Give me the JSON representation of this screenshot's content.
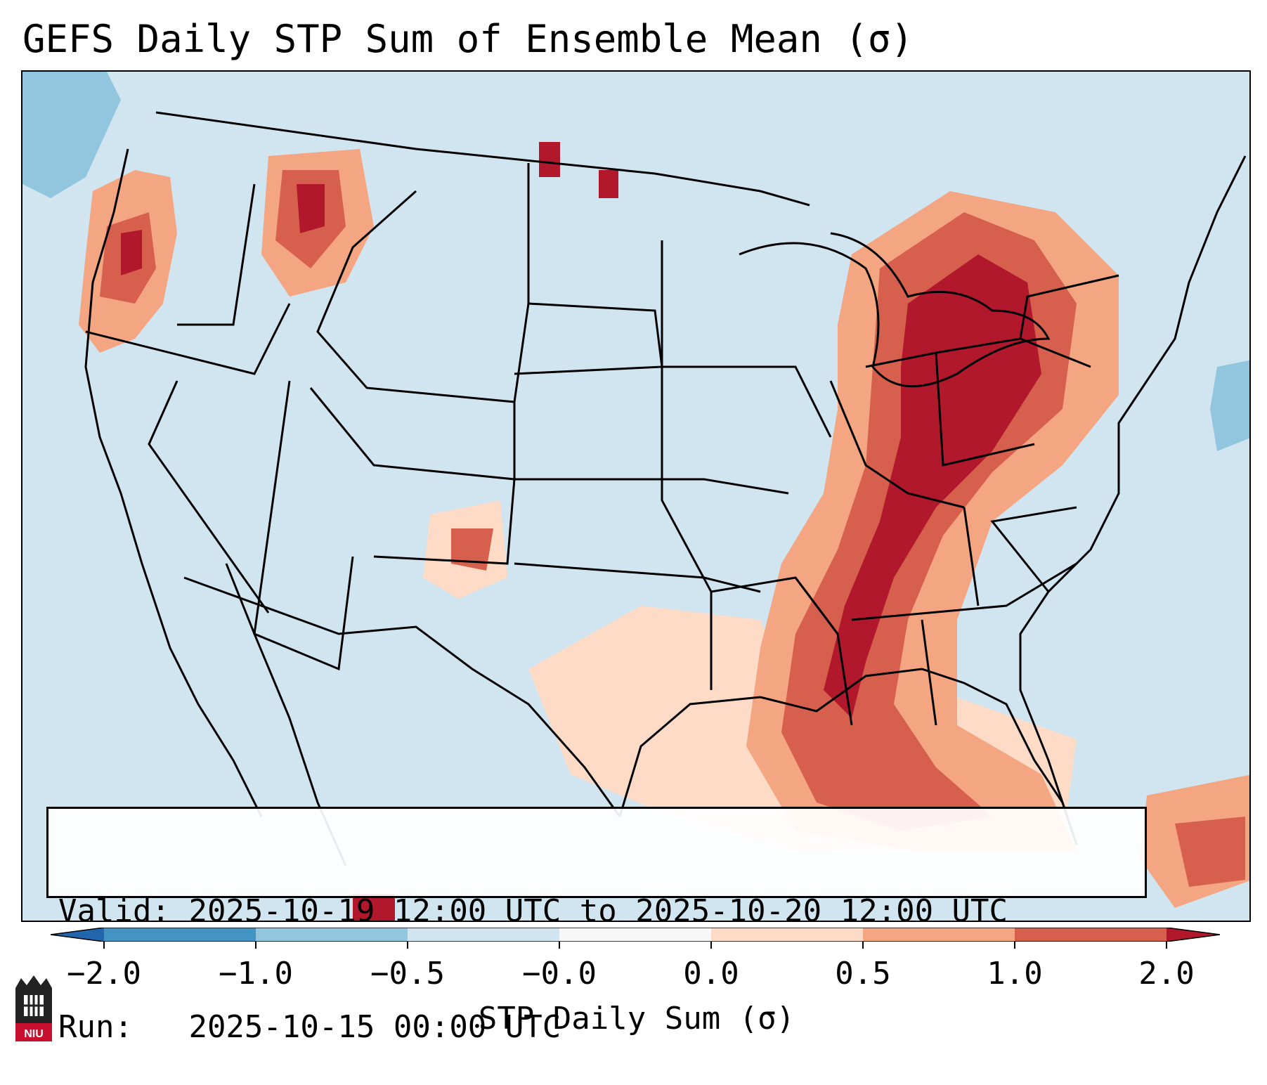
{
  "title": "GEFS Daily STP Sum of Ensemble Mean (σ)",
  "info": {
    "valid_label": "Valid:",
    "valid_value": "2025-10-19 12:00 UTC to 2025-10-20 12:00 UTC",
    "run_label": "Run:  ",
    "run_value": "2025-10-15 00:00 UTC"
  },
  "colorbar": {
    "label": "STP Daily Sum (σ)",
    "ticks": [
      "−2.0",
      "−1.0",
      "−0.5",
      "−0.0",
      "0.0",
      "0.5",
      "1.0",
      "2.0"
    ],
    "colors": [
      "#4393c3",
      "#92c5de",
      "#d1e5f0",
      "#f7f7f7",
      "#fddbc7",
      "#f4a582",
      "#d6604d"
    ],
    "extend_low_color": "#2166ac",
    "extend_high_color": "#b2182b"
  },
  "logo": {
    "text": "NIU",
    "icon": "niu-logo-icon"
  },
  "map": {
    "background_color": "#d1e5f0",
    "region": "Continental United States"
  }
}
